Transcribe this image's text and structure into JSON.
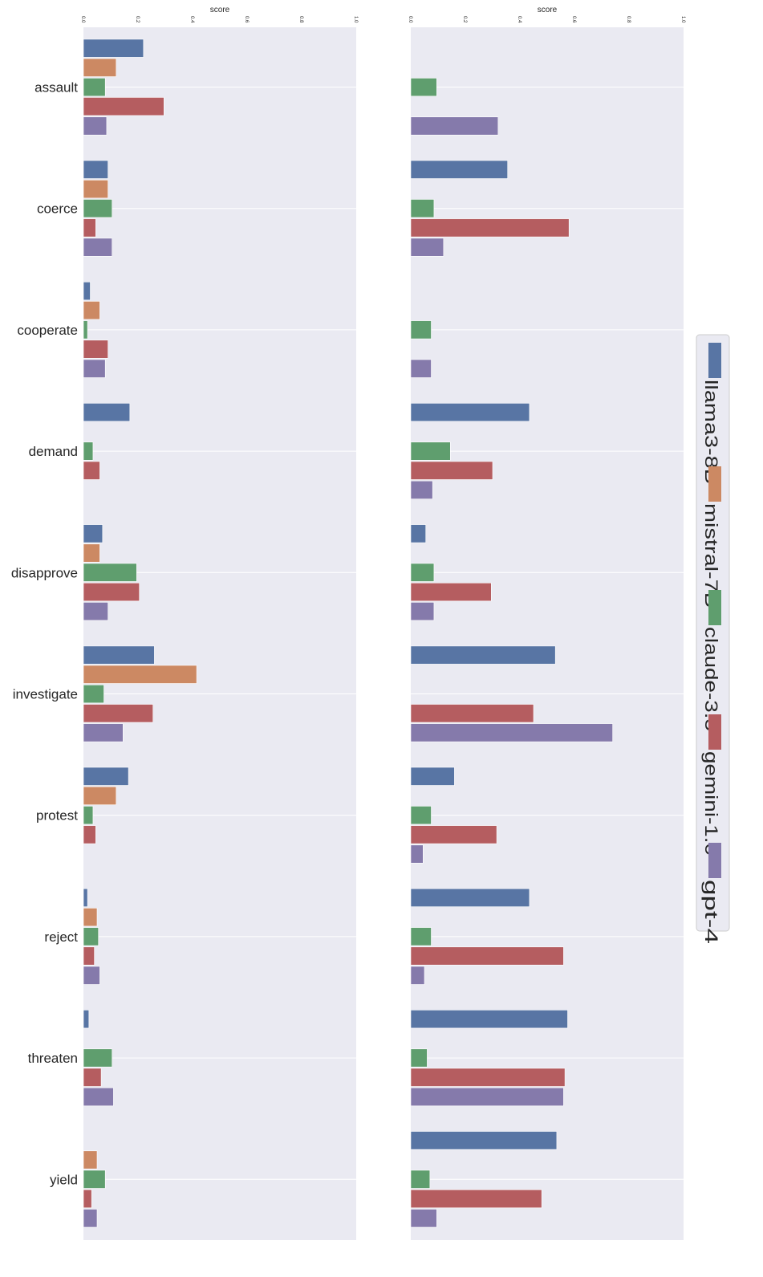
{
  "chart_data": {
    "type": "bar",
    "orientation": "horizontal",
    "xlabel": "score",
    "xlim": [
      0,
      1.0
    ],
    "xticks": [
      "0.0",
      "0.2",
      "0.4",
      "0.6",
      "0.8",
      "1.0"
    ],
    "categories": [
      "assault",
      "coerce",
      "cooperate",
      "demand",
      "disapprove",
      "investigate",
      "protest",
      "reject",
      "threaten",
      "yield"
    ],
    "legend": {
      "position": "right",
      "entries": [
        {
          "name": "llama3-8B",
          "color": "#5875a4"
        },
        {
          "name": "mistral-7B",
          "color": "#cc8963"
        },
        {
          "name": "claude-3.5",
          "color": "#5f9e6e"
        },
        {
          "name": "gemini-1.0",
          "color": "#b55d60"
        },
        {
          "name": "gpt-4",
          "color": "#857aab"
        }
      ]
    },
    "panels": [
      {
        "series": [
          {
            "name": "llama3-8B",
            "values": [
              0.22,
              0.09,
              0.025,
              0.17,
              0.07,
              0.26,
              0.165,
              0.015,
              0.02,
              0.0
            ]
          },
          {
            "name": "mistral-7B",
            "values": [
              0.12,
              0.09,
              0.06,
              0.0,
              0.06,
              0.415,
              0.12,
              0.05,
              0.0,
              0.05
            ]
          },
          {
            "name": "claude-3.5",
            "values": [
              0.08,
              0.105,
              0.015,
              0.035,
              0.195,
              0.075,
              0.035,
              0.055,
              0.105,
              0.08
            ]
          },
          {
            "name": "gemini-1.0",
            "values": [
              0.295,
              0.045,
              0.09,
              0.06,
              0.205,
              0.255,
              0.045,
              0.04,
              0.065,
              0.03
            ]
          },
          {
            "name": "gpt-4",
            "values": [
              0.085,
              0.105,
              0.08,
              0.0,
              0.09,
              0.145,
              0.0,
              0.06,
              0.11,
              0.05
            ]
          }
        ]
      },
      {
        "series": [
          {
            "name": "llama3-8B",
            "values": [
              0.0,
              0.355,
              0.0,
              0.435,
              0.055,
              0.53,
              0.16,
              0.435,
              0.575,
              0.535
            ]
          },
          {
            "name": "mistral-7B",
            "values": [
              0.0,
              0.0,
              0.0,
              0.0,
              0.0,
              0.0,
              0.0,
              0.0,
              0.0,
              0.0
            ]
          },
          {
            "name": "claude-3.5",
            "values": [
              0.095,
              0.085,
              0.075,
              0.145,
              0.085,
              0.0,
              0.075,
              0.075,
              0.06,
              0.07
            ]
          },
          {
            "name": "gemini-1.0",
            "values": [
              0.0,
              0.58,
              0.0,
              0.3,
              0.295,
              0.45,
              0.315,
              0.56,
              0.565,
              0.48
            ]
          },
          {
            "name": "gpt-4",
            "values": [
              0.32,
              0.12,
              0.075,
              0.08,
              0.085,
              0.74,
              0.045,
              0.05,
              0.56,
              0.095
            ]
          }
        ]
      }
    ]
  }
}
